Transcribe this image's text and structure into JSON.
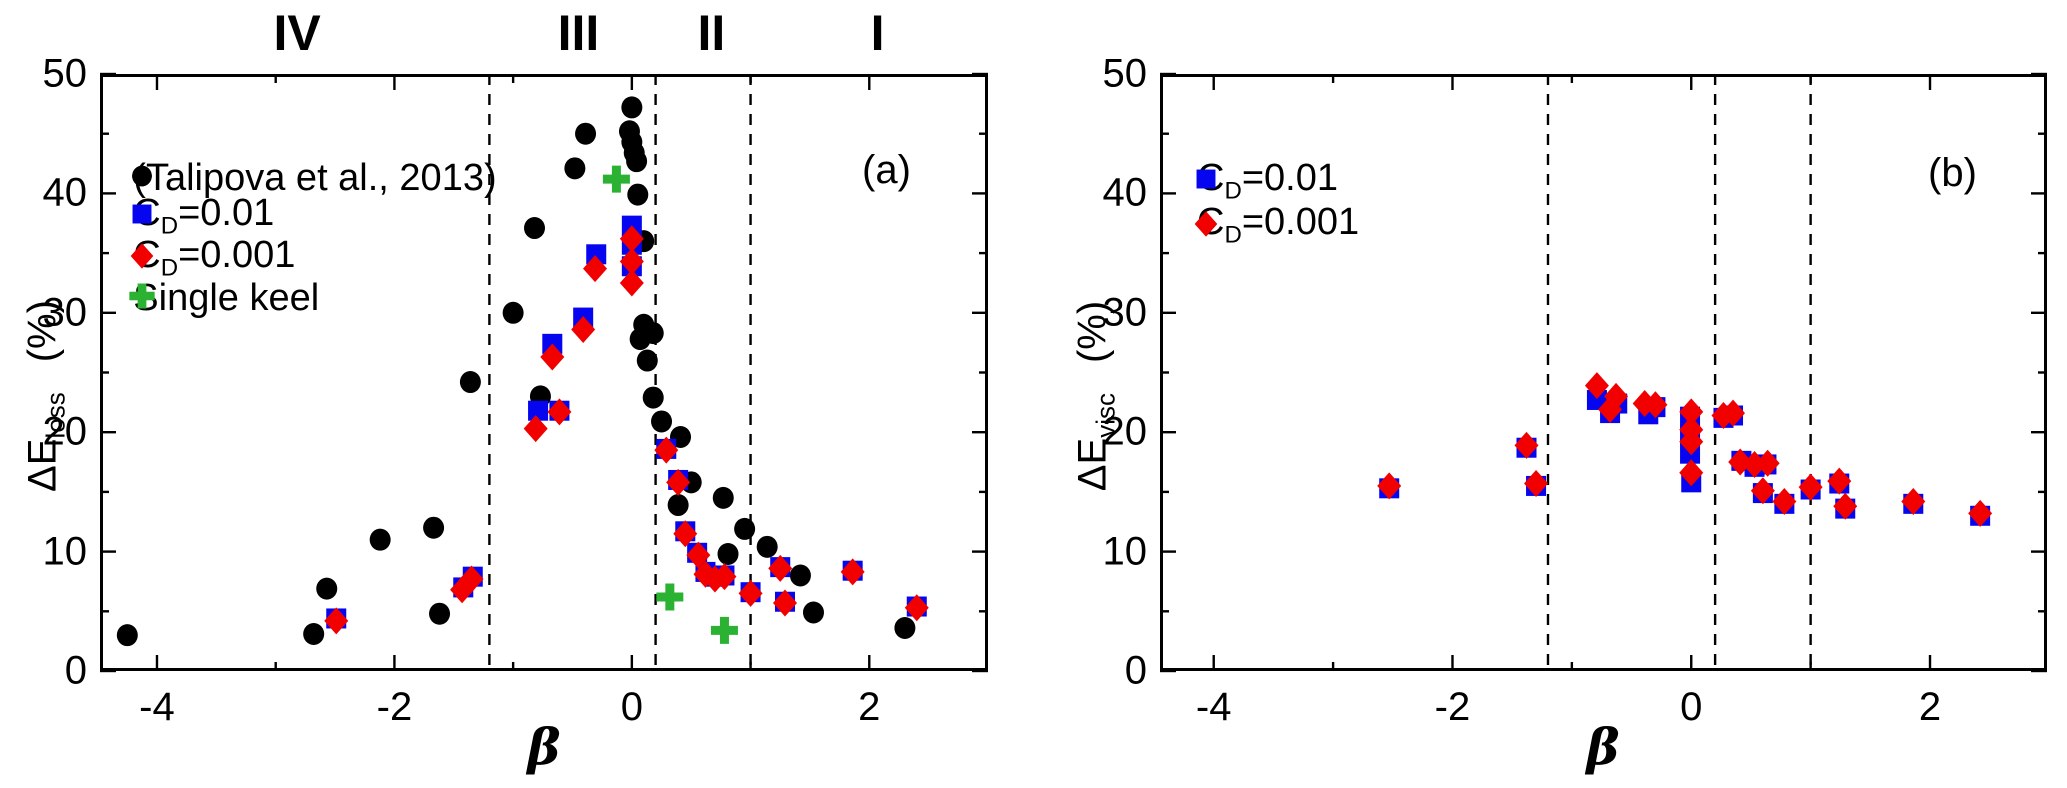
{
  "figure_type": "two-panel scatter figure",
  "chart_data": [
    {
      "type": "scatter",
      "panel_label": "(a)",
      "xlabel": "β",
      "ylabel_main": "ΔE",
      "ylabel_sub": "loss",
      "ylabel_unit": "(%)",
      "xlim": [
        -4.48,
        3.0
      ],
      "ylim": [
        0,
        50
      ],
      "xticks_major": [
        -4,
        -2,
        0,
        2
      ],
      "xticks_minor": [
        -3,
        -1,
        1
      ],
      "yticks_major": [
        0,
        10,
        20,
        30,
        40,
        50
      ],
      "yticks_minor": [
        5,
        15,
        25,
        35,
        45
      ],
      "dashed_lines": [
        -1.2,
        0.2,
        1.0
      ],
      "grid": false,
      "region_labels": [
        {
          "t": "IV",
          "x": -2.82
        },
        {
          "t": "III",
          "x": -0.45
        },
        {
          "t": "II",
          "x": 0.67
        },
        {
          "t": "I",
          "x": 2.07
        }
      ],
      "legend": {
        "marker_x": -4.25,
        "rows": [
          {
            "marker": "circle",
            "color": "#000000",
            "y": 41.3,
            "text": [
              {
                "t": "(Talipova et al., 2013)"
              }
            ]
          },
          {
            "marker": "square",
            "color": "#0505f0",
            "y": 38.1,
            "text": [
              {
                "t": "C"
              },
              {
                "s": "D"
              },
              {
                "t": "=0.01"
              }
            ]
          },
          {
            "marker": "diamond",
            "color": "#f20000",
            "y": 34.6,
            "text": [
              {
                "t": "C"
              },
              {
                "s": "D"
              },
              {
                "t": "=0.001"
              }
            ]
          },
          {
            "marker": "plus",
            "color": "#2cb233",
            "y": 31.2,
            "text": [
              {
                "t": "Single keel"
              }
            ]
          }
        ]
      },
      "series": [
        {
          "name": "(Talipova et al., 2013)",
          "marker": "circle",
          "color": "#000000",
          "points": [
            [
              -4.25,
              3.0
            ],
            [
              -2.68,
              3.1
            ],
            [
              -2.57,
              6.9
            ],
            [
              -2.12,
              11.0
            ],
            [
              -1.67,
              12.0
            ],
            [
              -1.62,
              4.8
            ],
            [
              -1.36,
              24.2
            ],
            [
              -1.0,
              30.0
            ],
            [
              -0.82,
              37.1
            ],
            [
              -0.77,
              23.0
            ],
            [
              -0.48,
              42.1
            ],
            [
              -0.39,
              45.0
            ],
            [
              0.0,
              47.2
            ],
            [
              -0.02,
              45.2
            ],
            [
              0.0,
              44.3
            ],
            [
              0.02,
              43.4
            ],
            [
              0.04,
              42.7
            ],
            [
              0.05,
              39.9
            ],
            [
              0.1,
              36.0
            ],
            [
              0.1,
              29.0
            ],
            [
              0.18,
              28.3
            ],
            [
              0.07,
              27.8
            ],
            [
              0.13,
              26.0
            ],
            [
              0.18,
              22.9
            ],
            [
              0.25,
              20.9
            ],
            [
              0.41,
              19.6
            ],
            [
              0.5,
              15.8
            ],
            [
              0.39,
              13.9
            ],
            [
              0.77,
              14.5
            ],
            [
              0.81,
              9.8
            ],
            [
              0.95,
              11.9
            ],
            [
              1.14,
              10.4
            ],
            [
              1.42,
              8.0
            ],
            [
              1.53,
              4.9
            ],
            [
              2.3,
              3.6
            ]
          ]
        },
        {
          "name": "CD=0.01",
          "marker": "square",
          "color": "#0505f0",
          "points": [
            [
              -2.49,
              4.4
            ],
            [
              -1.42,
              7.0
            ],
            [
              -1.34,
              7.9
            ],
            [
              -0.79,
              21.8
            ],
            [
              -0.67,
              27.4
            ],
            [
              -0.61,
              21.8
            ],
            [
              -0.41,
              29.6
            ],
            [
              -0.3,
              34.9
            ],
            [
              0.0,
              37.3
            ],
            [
              0.0,
              35.7
            ],
            [
              0.0,
              33.9
            ],
            [
              0.29,
              18.6
            ],
            [
              0.39,
              16.0
            ],
            [
              0.45,
              11.7
            ],
            [
              0.55,
              9.9
            ],
            [
              0.62,
              8.3
            ],
            [
              0.7,
              7.9
            ],
            [
              0.78,
              8.0
            ],
            [
              1.0,
              6.6
            ],
            [
              1.25,
              8.7
            ],
            [
              1.29,
              5.8
            ],
            [
              1.86,
              8.4
            ],
            [
              2.4,
              5.4
            ]
          ]
        },
        {
          "name": "CD=0.001",
          "marker": "diamond",
          "color": "#f20000",
          "points": [
            [
              -2.49,
              4.2
            ],
            [
              -1.43,
              6.8
            ],
            [
              -1.35,
              7.7
            ],
            [
              -0.81,
              20.3
            ],
            [
              -0.67,
              26.3
            ],
            [
              -0.61,
              21.7
            ],
            [
              -0.41,
              28.6
            ],
            [
              -0.31,
              33.7
            ],
            [
              0.0,
              36.2
            ],
            [
              0.0,
              34.3
            ],
            [
              0.0,
              32.5
            ],
            [
              0.29,
              18.5
            ],
            [
              0.39,
              15.8
            ],
            [
              0.45,
              11.5
            ],
            [
              0.56,
              9.7
            ],
            [
              0.62,
              8.1
            ],
            [
              0.7,
              7.7
            ],
            [
              0.78,
              7.9
            ],
            [
              1.0,
              6.5
            ],
            [
              1.25,
              8.6
            ],
            [
              1.29,
              5.7
            ],
            [
              1.86,
              8.3
            ],
            [
              2.4,
              5.3
            ]
          ]
        },
        {
          "name": "Single keel",
          "marker": "plus",
          "color": "#2cb233",
          "points": [
            [
              -0.13,
              41.2
            ],
            [
              0.32,
              6.2
            ],
            [
              0.78,
              3.4
            ]
          ]
        }
      ]
    },
    {
      "type": "scatter",
      "panel_label": "(b)",
      "xlabel": "β",
      "ylabel_main": "ΔE",
      "ylabel_sub": "visc",
      "ylabel_unit": "(%)",
      "xlim": [
        -4.45,
        2.98
      ],
      "ylim": [
        0,
        50
      ],
      "xticks_major": [
        -4,
        -2,
        0,
        2
      ],
      "xticks_minor": [
        -3,
        -1,
        1
      ],
      "yticks_major": [
        0,
        10,
        20,
        30,
        40,
        50
      ],
      "yticks_minor": [
        5,
        15,
        25,
        35,
        45
      ],
      "dashed_lines": [
        -1.2,
        0.2,
        1.0
      ],
      "grid": false,
      "region_labels": [],
      "legend": {
        "marker_x": -4.19,
        "rows": [
          {
            "marker": "square",
            "color": "#0505f0",
            "y": 41.0,
            "text": [
              {
                "t": "C"
              },
              {
                "s": "D"
              },
              {
                "t": "=0.01"
              }
            ]
          },
          {
            "marker": "diamond",
            "color": "#f20000",
            "y": 37.3,
            "text": [
              {
                "t": "C"
              },
              {
                "s": "D"
              },
              {
                "t": "=0.001"
              }
            ]
          }
        ]
      },
      "series": [
        {
          "name": "CD=0.01",
          "marker": "square",
          "color": "#0505f0",
          "points": [
            [
              -2.53,
              15.3
            ],
            [
              -1.38,
              18.7
            ],
            [
              -1.3,
              15.5
            ],
            [
              -0.79,
              22.7
            ],
            [
              -0.68,
              21.6
            ],
            [
              -0.62,
              22.4
            ],
            [
              -0.36,
              21.5
            ],
            [
              -0.3,
              22.1
            ],
            [
              -0.01,
              21.3
            ],
            [
              -0.01,
              19.8
            ],
            [
              -0.01,
              18.2
            ],
            [
              0.0,
              15.8
            ],
            [
              0.27,
              21.2
            ],
            [
              0.35,
              21.4
            ],
            [
              0.42,
              17.6
            ],
            [
              0.53,
              17.1
            ],
            [
              0.63,
              17.3
            ],
            [
              0.6,
              14.9
            ],
            [
              0.78,
              14.0
            ],
            [
              1.0,
              15.2
            ],
            [
              1.24,
              15.7
            ],
            [
              1.29,
              13.6
            ],
            [
              1.86,
              14.0
            ],
            [
              2.42,
              13.0
            ]
          ]
        },
        {
          "name": "CD=0.001",
          "marker": "diamond",
          "color": "#f20000",
          "points": [
            [
              -2.53,
              15.5
            ],
            [
              -1.38,
              18.9
            ],
            [
              -1.3,
              15.7
            ],
            [
              -0.79,
              23.9
            ],
            [
              -0.68,
              21.9
            ],
            [
              -0.63,
              23.0
            ],
            [
              -0.39,
              22.4
            ],
            [
              -0.3,
              22.3
            ],
            [
              0.0,
              21.7
            ],
            [
              0.0,
              20.2
            ],
            [
              0.0,
              19.2
            ],
            [
              0.0,
              16.6
            ],
            [
              0.27,
              21.4
            ],
            [
              0.35,
              21.6
            ],
            [
              0.41,
              17.5
            ],
            [
              0.53,
              17.3
            ],
            [
              0.64,
              17.4
            ],
            [
              0.6,
              15.1
            ],
            [
              0.78,
              14.2
            ],
            [
              1.0,
              15.4
            ],
            [
              1.24,
              15.9
            ],
            [
              1.29,
              13.8
            ],
            [
              1.86,
              14.2
            ],
            [
              2.42,
              13.2
            ]
          ]
        }
      ]
    }
  ]
}
